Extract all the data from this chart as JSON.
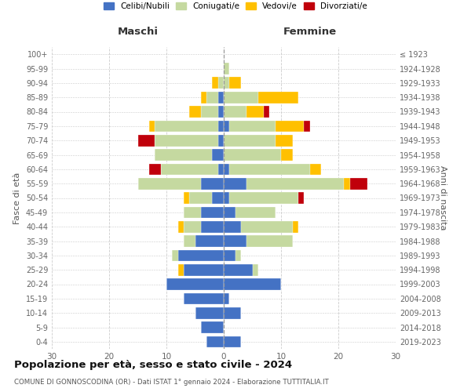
{
  "age_groups": [
    "0-4",
    "5-9",
    "10-14",
    "15-19",
    "20-24",
    "25-29",
    "30-34",
    "35-39",
    "40-44",
    "45-49",
    "50-54",
    "55-59",
    "60-64",
    "65-69",
    "70-74",
    "75-79",
    "80-84",
    "85-89",
    "90-94",
    "95-99",
    "100+"
  ],
  "birth_years": [
    "2019-2023",
    "2014-2018",
    "2009-2013",
    "2004-2008",
    "1999-2003",
    "1994-1998",
    "1989-1993",
    "1984-1988",
    "1979-1983",
    "1974-1978",
    "1969-1973",
    "1964-1968",
    "1959-1963",
    "1954-1958",
    "1949-1953",
    "1944-1948",
    "1939-1943",
    "1934-1938",
    "1929-1933",
    "1924-1928",
    "≤ 1923"
  ],
  "colors": {
    "celibi": "#4472c4",
    "coniugati": "#c5d9a0",
    "vedovi": "#ffc000",
    "divorziati": "#c0000b"
  },
  "males": {
    "celibi": [
      3,
      4,
      5,
      7,
      10,
      7,
      8,
      5,
      4,
      4,
      2,
      4,
      1,
      2,
      1,
      1,
      1,
      1,
      0,
      0,
      0
    ],
    "coniugati": [
      0,
      0,
      0,
      0,
      0,
      0,
      1,
      2,
      3,
      3,
      4,
      11,
      10,
      10,
      11,
      11,
      3,
      2,
      1,
      0,
      0
    ],
    "vedovi": [
      0,
      0,
      0,
      0,
      0,
      1,
      0,
      0,
      1,
      0,
      1,
      0,
      0,
      0,
      0,
      1,
      2,
      1,
      1,
      0,
      0
    ],
    "divorziati": [
      0,
      0,
      0,
      0,
      0,
      0,
      0,
      0,
      0,
      0,
      0,
      0,
      2,
      0,
      3,
      0,
      0,
      0,
      0,
      0,
      0
    ]
  },
  "females": {
    "celibi": [
      3,
      0,
      3,
      1,
      10,
      5,
      2,
      4,
      3,
      2,
      1,
      4,
      1,
      0,
      0,
      1,
      0,
      0,
      0,
      0,
      0
    ],
    "coniugati": [
      0,
      0,
      0,
      0,
      0,
      1,
      1,
      8,
      9,
      7,
      12,
      17,
      14,
      10,
      9,
      8,
      4,
      6,
      1,
      1,
      0
    ],
    "vedovi": [
      0,
      0,
      0,
      0,
      0,
      0,
      0,
      0,
      1,
      0,
      0,
      1,
      2,
      2,
      3,
      5,
      3,
      7,
      2,
      0,
      0
    ],
    "divorziati": [
      0,
      0,
      0,
      0,
      0,
      0,
      0,
      0,
      0,
      0,
      1,
      3,
      0,
      0,
      0,
      1,
      1,
      0,
      0,
      0,
      0
    ]
  },
  "xlim": 30,
  "title": "Popolazione per età, sesso e stato civile - 2024",
  "subtitle": "COMUNE DI GONNOSCODINA (OR) - Dati ISTAT 1° gennaio 2024 - Elaborazione TUTTITALIA.IT",
  "xlabel_left": "Maschi",
  "xlabel_right": "Femmine",
  "ylabel_left": "Fasce di età",
  "ylabel_right": "Anni di nascita",
  "legend_labels": [
    "Celibi/Nubili",
    "Coniugati/e",
    "Vedovi/e",
    "Divorziati/e"
  ],
  "background_color": "#ffffff",
  "grid_color": "#cccccc"
}
